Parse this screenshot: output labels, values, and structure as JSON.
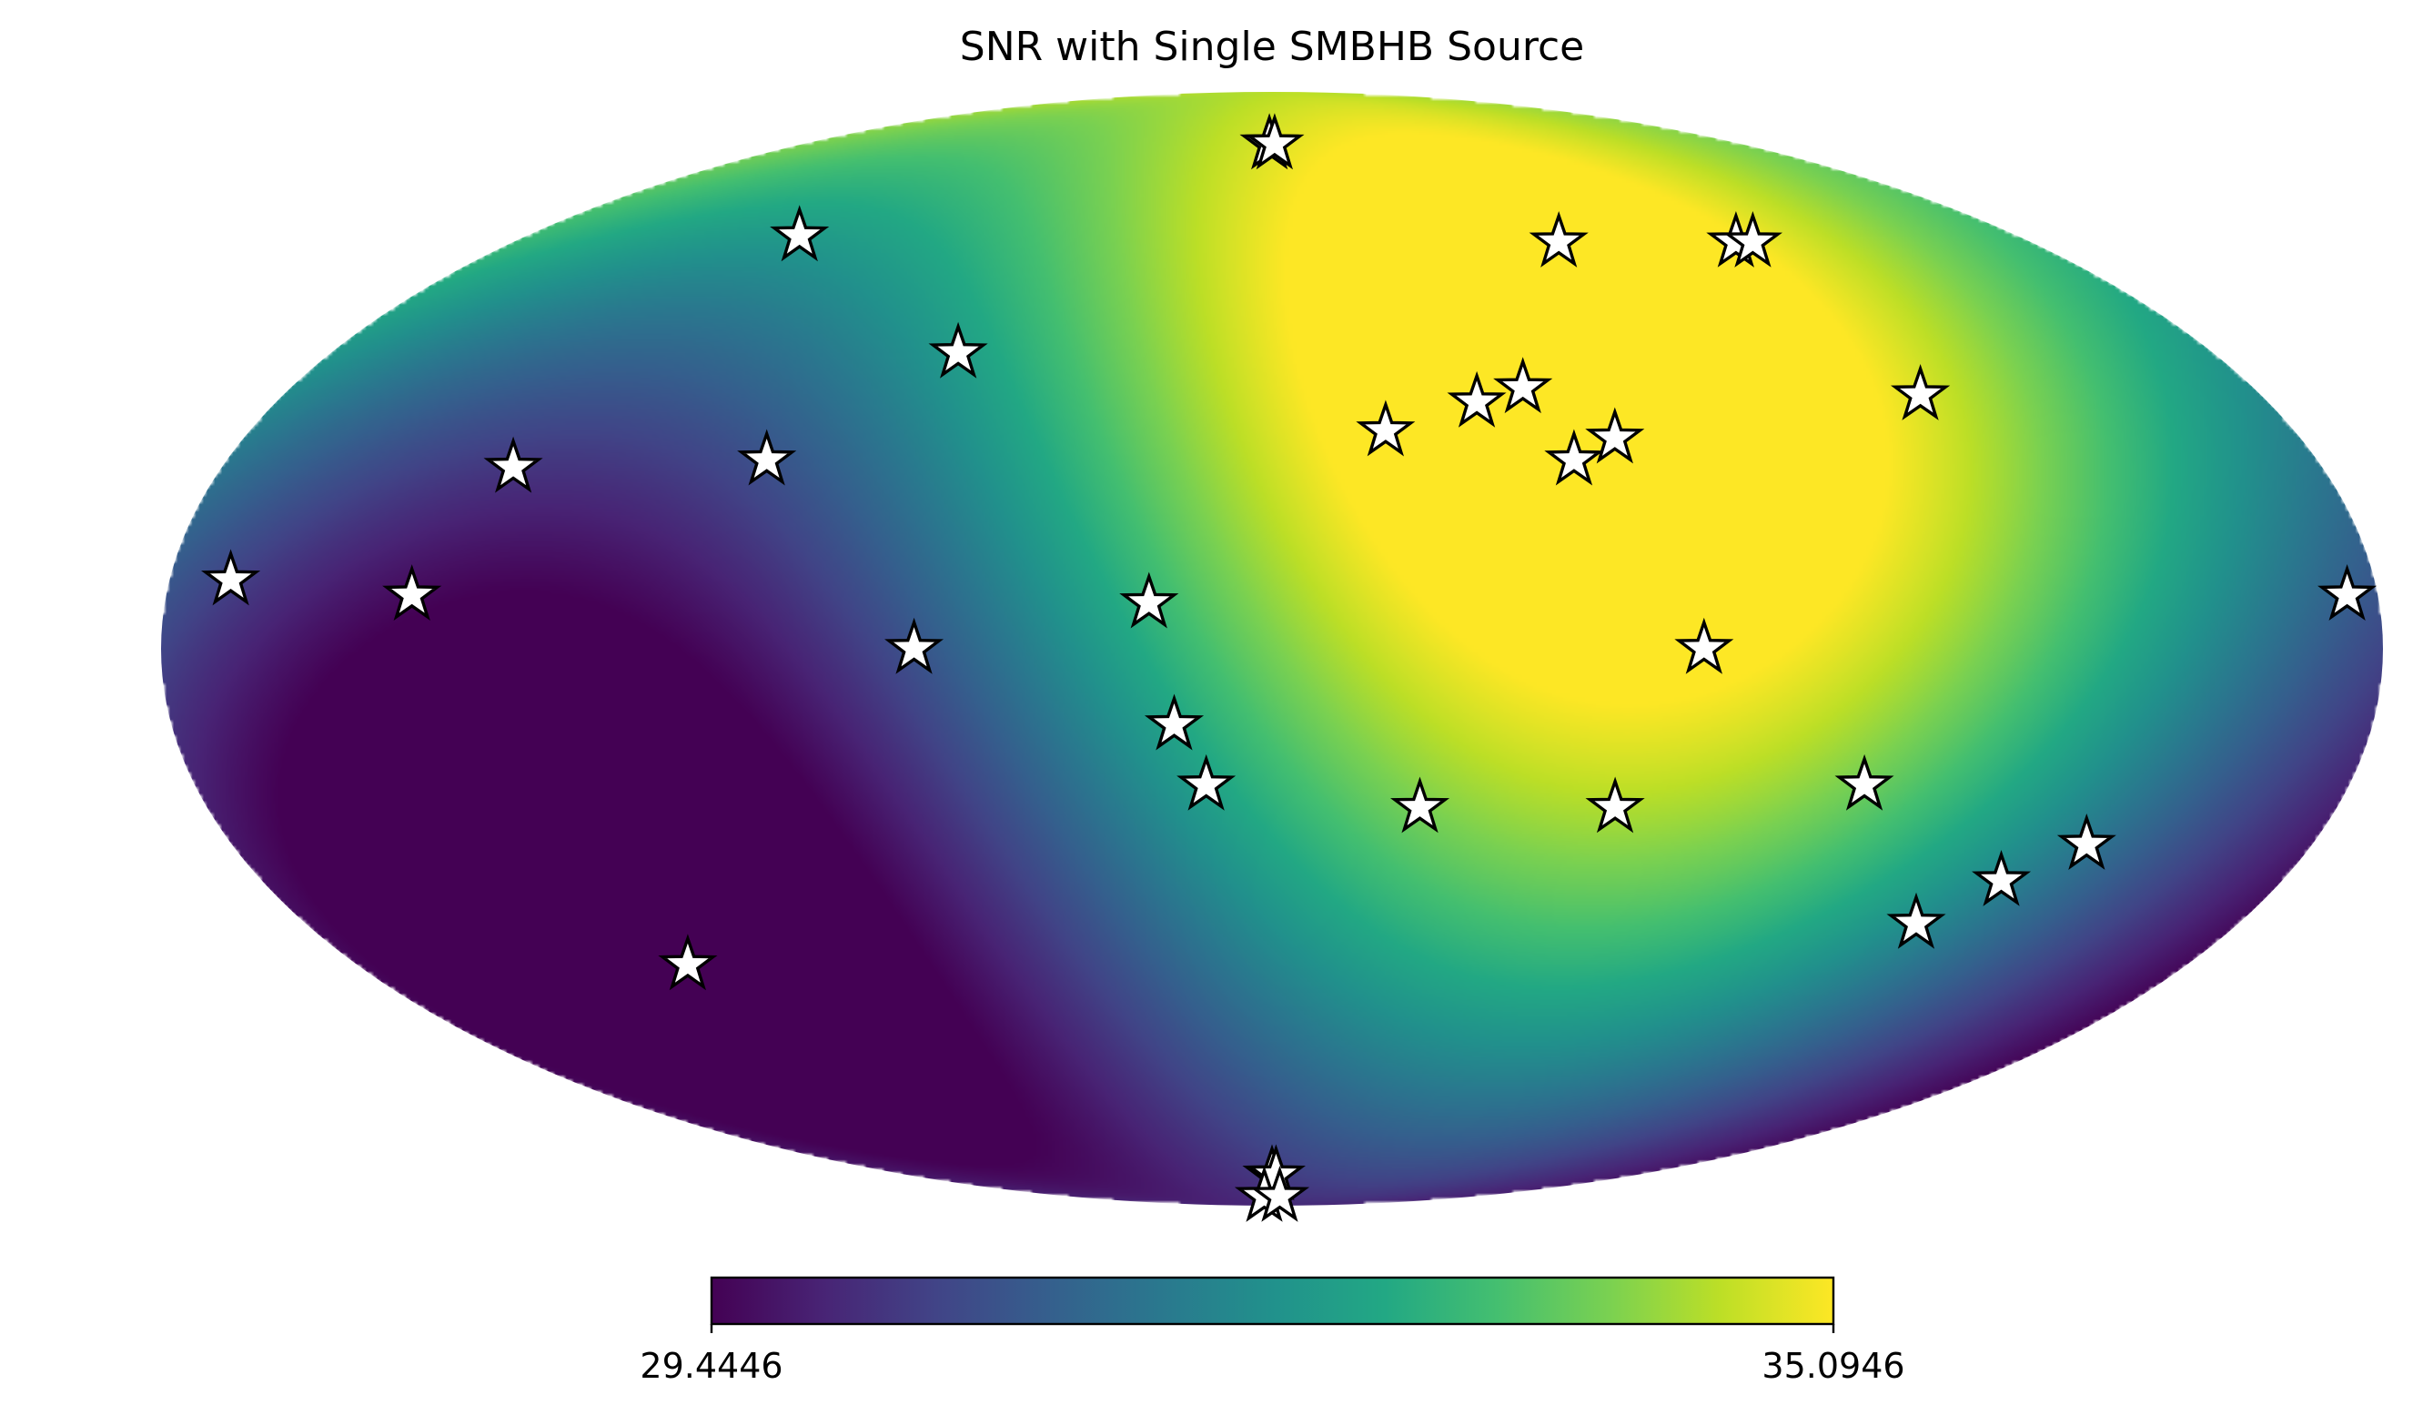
{
  "chart_data": {
    "type": "heatmap",
    "projection": "mollweide",
    "title": "SNR with Single SMBHB Source",
    "colormap": "viridis",
    "colorbar": {
      "min_label": "29.4446",
      "max_label": "35.0946",
      "vmin": 29.4446,
      "vmax": 35.0946,
      "orientation": "horizontal"
    },
    "field": {
      "minimum": {
        "lon_deg": 120,
        "lat_deg": -15,
        "value": 29.4446
      },
      "maximum": {
        "lon_deg": -55,
        "lat_deg": 55,
        "value": 35.0946
      }
    },
    "pulsars": [
      {
        "lon_deg": 1,
        "lat_deg": 75
      },
      {
        "lon_deg": -1,
        "lat_deg": 75
      },
      {
        "lon_deg": 114,
        "lat_deg": 58
      },
      {
        "lon_deg": -68,
        "lat_deg": 57
      },
      {
        "lon_deg": -110,
        "lat_deg": 57
      },
      {
        "lon_deg": -114,
        "lat_deg": 57
      },
      {
        "lon_deg": 60,
        "lat_deg": 40
      },
      {
        "lon_deg": -46,
        "lat_deg": 35
      },
      {
        "lon_deg": -37,
        "lat_deg": 33
      },
      {
        "lon_deg": -118,
        "lat_deg": 34
      },
      {
        "lon_deg": -20,
        "lat_deg": 29
      },
      {
        "lon_deg": -60,
        "lat_deg": 28
      },
      {
        "lon_deg": -52,
        "lat_deg": 25
      },
      {
        "lon_deg": 130,
        "lat_deg": 24
      },
      {
        "lon_deg": 87,
        "lat_deg": 25
      },
      {
        "lon_deg": 170,
        "lat_deg": 9
      },
      {
        "lon_deg": 140,
        "lat_deg": 7
      },
      {
        "lon_deg": 20,
        "lat_deg": 6
      },
      {
        "lon_deg": -175,
        "lat_deg": 7
      },
      {
        "lon_deg": -70,
        "lat_deg": 0
      },
      {
        "lon_deg": 58,
        "lat_deg": 0
      },
      {
        "lon_deg": 16,
        "lat_deg": -10
      },
      {
        "lon_deg": 11,
        "lat_deg": -18
      },
      {
        "lon_deg": -99,
        "lat_deg": -18
      },
      {
        "lon_deg": -141,
        "lat_deg": -26
      },
      {
        "lon_deg": -25,
        "lat_deg": -21
      },
      {
        "lon_deg": -58,
        "lat_deg": -21
      },
      {
        "lon_deg": -130,
        "lat_deg": -31
      },
      {
        "lon_deg": -120,
        "lat_deg": -37
      },
      {
        "lon_deg": 115,
        "lat_deg": -43
      },
      {
        "lon_deg": 0,
        "lat_deg": -80
      },
      {
        "lon_deg": -2,
        "lat_deg": -80
      },
      {
        "lon_deg": 7,
        "lat_deg": -86
      },
      {
        "lon_deg": -7,
        "lat_deg": -86
      }
    ],
    "marker": "star",
    "grid": false,
    "legend": "none"
  }
}
